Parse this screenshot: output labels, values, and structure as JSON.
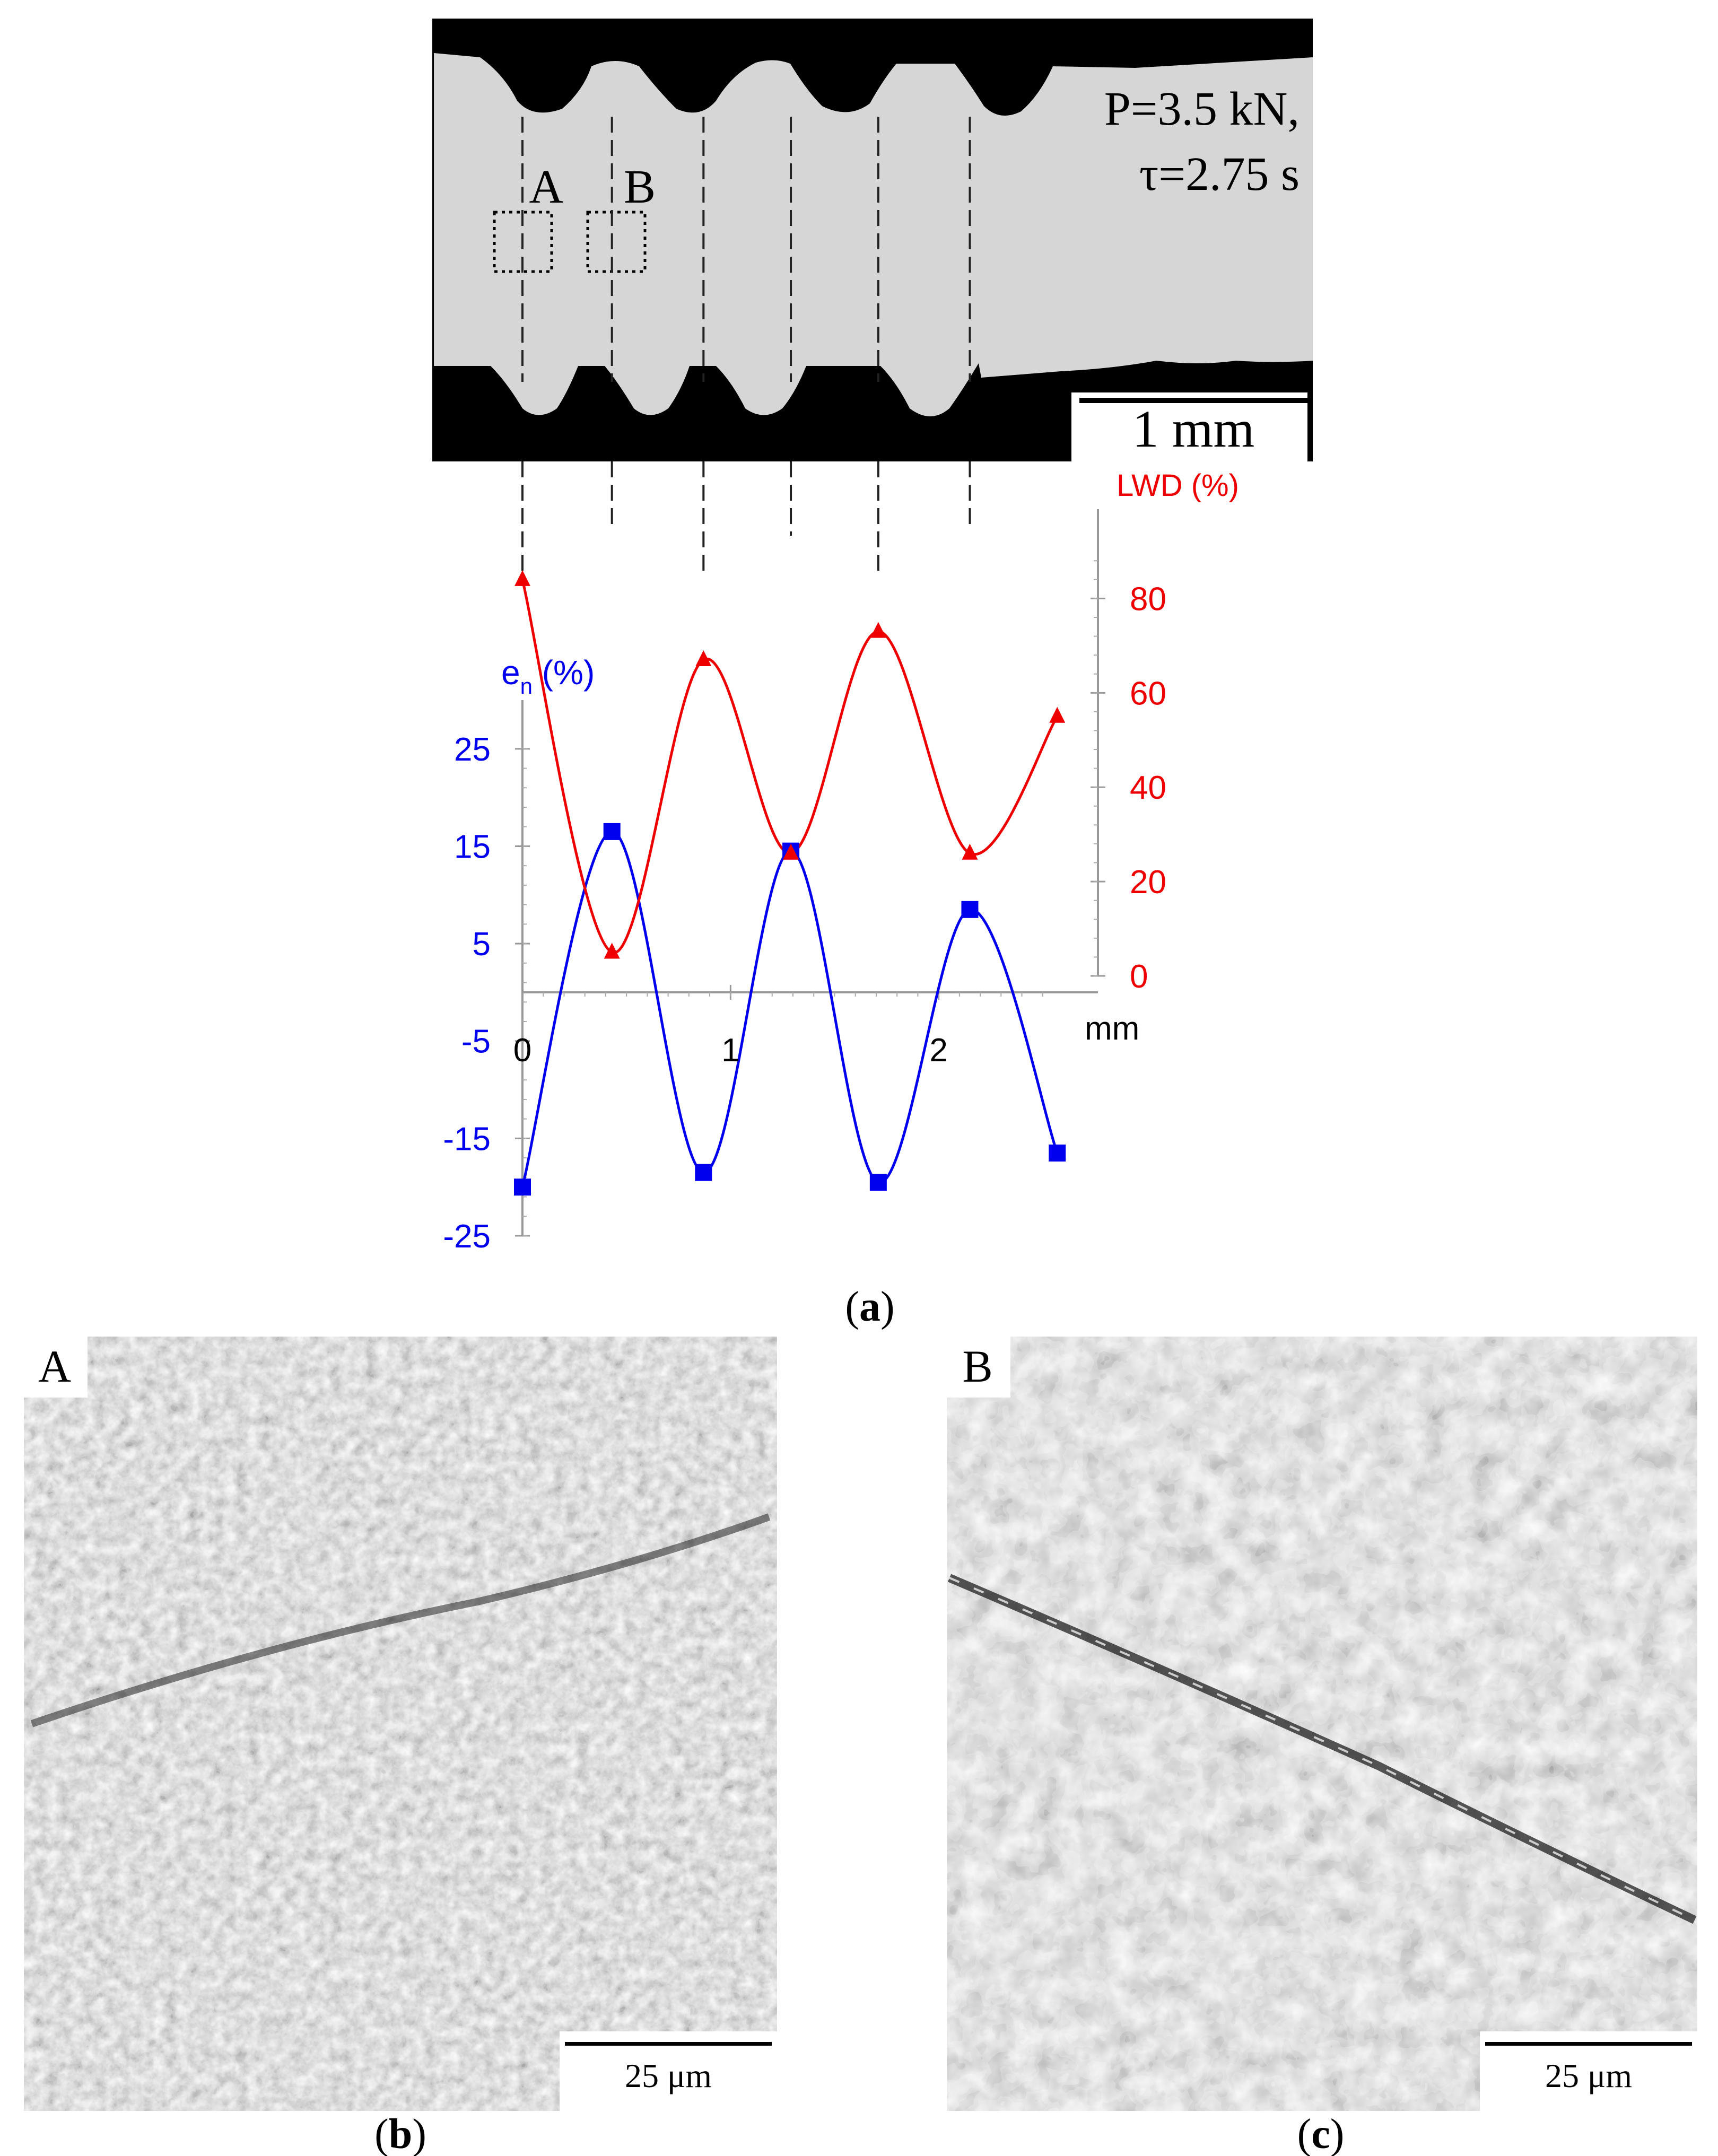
{
  "figure": {
    "micrograph_overlay": {
      "line1": "P=3.5 kN,",
      "line2": "τ=2.75 s",
      "box_a": "A",
      "box_b": "B",
      "scale_label": "1 mm"
    },
    "panel_a_caption": {
      "open": "(",
      "letter": "a",
      "close": ")"
    },
    "panel_b": {
      "label": "A",
      "scale_label": "25 μm"
    },
    "panel_c": {
      "label": "B",
      "scale_label": "25 μm"
    },
    "panel_b_caption": {
      "open": "(",
      "letter": "b",
      "close": ")"
    },
    "panel_c_caption": {
      "open": "(",
      "letter": "c",
      "close": ")"
    },
    "colors": {
      "en": "#0000ee",
      "lwd": "#ee0000"
    }
  },
  "chart_data": {
    "type": "line",
    "x_unit_label": "mm",
    "x_ticks": [
      "0",
      "1",
      "2"
    ],
    "xlim": [
      0,
      2.6
    ],
    "series": [
      {
        "name": "e",
        "name_sub": "n",
        "name_suffix": " (%)",
        "axis": "left",
        "marker": "square",
        "color": "#0000ee",
        "x": [
          0.0,
          0.43,
          0.87,
          1.29,
          1.71,
          2.15,
          2.57
        ],
        "y": [
          -20,
          16.5,
          -18.5,
          14.5,
          -19.5,
          8.5,
          -16.5
        ]
      },
      {
        "name": "LWD (%)",
        "axis": "right",
        "marker": "triangle",
        "color": "#ee0000",
        "x": [
          0.0,
          0.43,
          0.87,
          1.29,
          1.71,
          2.15,
          2.57
        ],
        "y": [
          84,
          5,
          67,
          26,
          73,
          26,
          55
        ]
      }
    ],
    "left_axis": {
      "ticks": [
        "25",
        "15",
        "5",
        "-5",
        "-15",
        "-25"
      ],
      "ylim": [
        -25,
        30
      ]
    },
    "right_axis": {
      "ticks": [
        "80",
        "60",
        "40",
        "20",
        "0"
      ],
      "ylim": [
        0,
        95
      ]
    },
    "grid": false
  }
}
